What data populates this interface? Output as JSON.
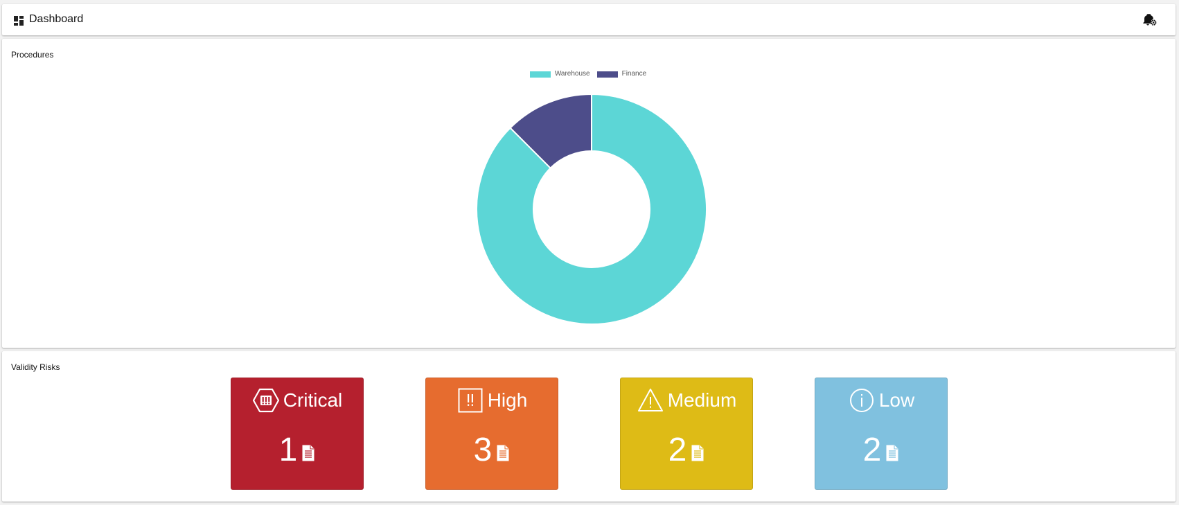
{
  "header": {
    "title": "Dashboard",
    "icon": "dashboard-icon",
    "notifications_icon": "bell-settings-icon"
  },
  "procedures": {
    "label": "Procedures",
    "chart_data": {
      "type": "pie",
      "donut": true,
      "legend_position": "top-center",
      "title": "",
      "categories": [
        "Warehouse",
        "Finance"
      ],
      "values": [
        7,
        1
      ],
      "colors": [
        "#5cd6d6",
        "#4d4d8a"
      ]
    }
  },
  "risks": {
    "label": "Validity Risks",
    "items": [
      {
        "level": "Critical",
        "count": "1",
        "color": "#b5202e",
        "icon": "critical-hexagon-icon"
      },
      {
        "level": "High",
        "count": "3",
        "color": "#e66c2f",
        "icon": "high-square-icon"
      },
      {
        "level": "Medium",
        "count": "2",
        "color": "#debb16",
        "icon": "warning-triangle-icon"
      },
      {
        "level": "Low",
        "count": "2",
        "color": "#80c1df",
        "icon": "info-circle-icon"
      }
    ],
    "doc_icon": "document-icon"
  }
}
